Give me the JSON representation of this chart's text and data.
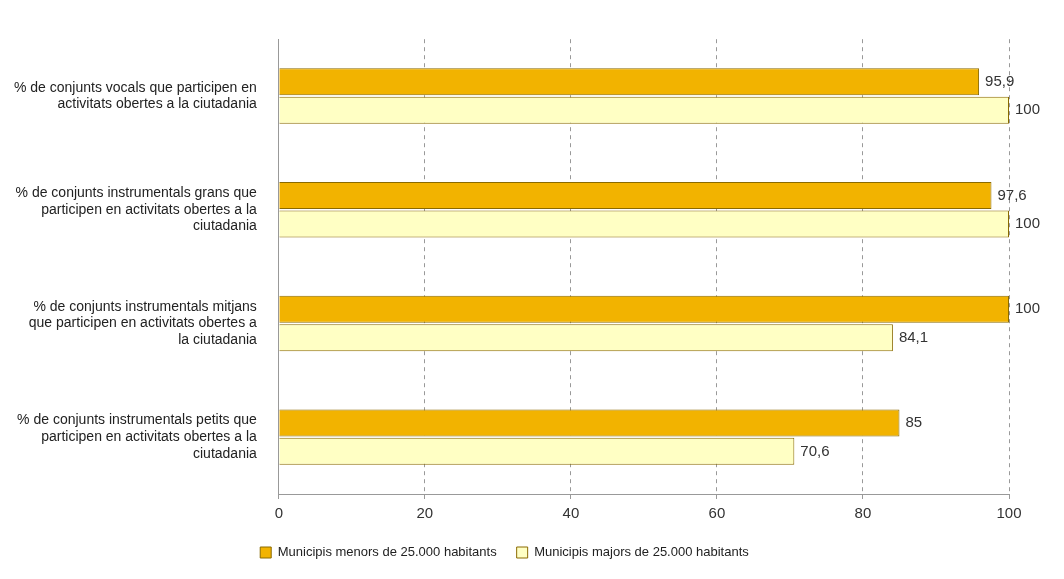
{
  "chart_data": {
    "type": "bar",
    "orientation": "horizontal",
    "categories": [
      "% de conjunts vocals que participen en activitats obertes a la ciutadania",
      "% de conjunts instrumentals grans que participen en activitats obertes a la ciutadania",
      "% de conjunts instrumentals mitjans que participen en activitats obertes a la ciutadania",
      "% de conjunts instrumentals petits que participen en activitats obertes a la ciutadania"
    ],
    "series": [
      {
        "name": "Municipis menors de 25.000 habitants",
        "color": "#f2b300",
        "values": [
          95.9,
          97.6,
          100,
          85
        ],
        "value_labels": [
          "95,9",
          "97,6",
          "100",
          "85"
        ]
      },
      {
        "name": "Municipis majors de 25.000 habitants",
        "color": "#ffffc4",
        "values": [
          100,
          100,
          84.1,
          70.6
        ],
        "value_labels": [
          "100",
          "100",
          "84,1",
          "70,6"
        ]
      }
    ],
    "xlim": [
      0,
      100
    ],
    "xticks": [
      0,
      20,
      40,
      60,
      80,
      100
    ],
    "grid": "x",
    "legend": "bottom"
  }
}
